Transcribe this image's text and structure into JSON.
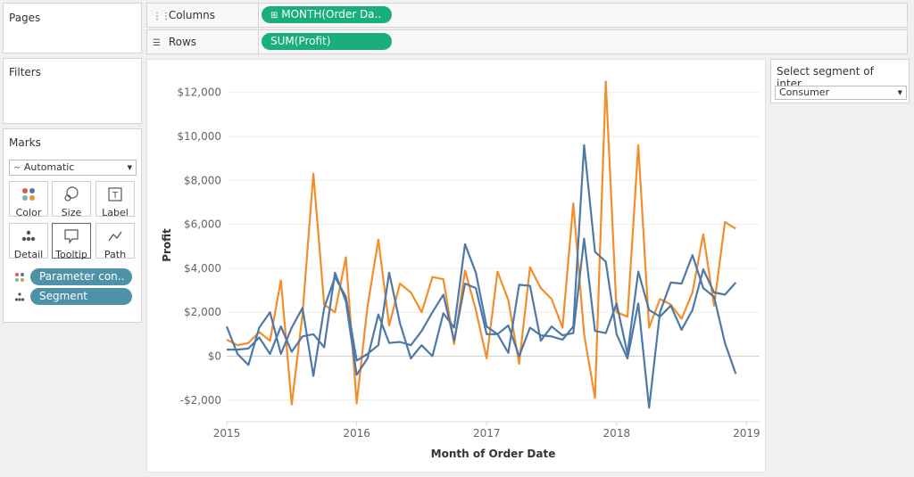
{
  "shelves": {
    "pages_title": "Pages",
    "columns_label": "Columns",
    "columns_pill": "MONTH(Order Da..",
    "rows_label": "Rows",
    "rows_pill": "SUM(Profit)"
  },
  "filters": {
    "title": "Filters"
  },
  "marks": {
    "title": "Marks",
    "mark_type": "Automatic",
    "buttons": [
      {
        "label": "Color",
        "icon": "color-dots-icon"
      },
      {
        "label": "Size",
        "icon": "size-icon"
      },
      {
        "label": "Label",
        "icon": "label-icon"
      },
      {
        "label": "Detail",
        "icon": "detail-dots-icon"
      },
      {
        "label": "Tooltip",
        "icon": "tooltip-icon"
      },
      {
        "label": "Path",
        "icon": "path-icon"
      }
    ],
    "fields": [
      {
        "label": "Parameter con..",
        "icon": "color-dots-icon"
      },
      {
        "label": "Segment",
        "icon": "detail-dots-icon"
      }
    ]
  },
  "parameter": {
    "title": "Select segment of inter...",
    "value": "Consumer"
  },
  "colors": {
    "orange": "#f28e2b",
    "blue": "#4e79a7",
    "pill_green": "#1aae7e",
    "pill_blue": "#4e91a8"
  },
  "chart_data": {
    "type": "line",
    "xlabel": "Month of Order Date",
    "ylabel": "Profit",
    "ylim": [
      -2900,
      13000
    ],
    "yticks": [
      -2000,
      0,
      2000,
      4000,
      6000,
      8000,
      10000,
      12000
    ],
    "ytick_labels": [
      "-$2,000",
      "$0",
      "$2,000",
      "$4,000",
      "$6,000",
      "$8,000",
      "$10,000",
      "$12,000"
    ],
    "xlim": [
      2015,
      2019.1
    ],
    "xticks": [
      2015,
      2016,
      2017,
      2018,
      2019
    ],
    "xtick_labels": [
      "2015",
      "2016",
      "2017",
      "2018",
      "2019"
    ],
    "grid": "horizontal",
    "series": [
      {
        "color": "orange",
        "values": [
          750,
          500,
          600,
          1100,
          700,
          3450,
          -2200,
          1900,
          8300,
          2350,
          2000,
          4500,
          -2150,
          2250,
          5300,
          1400,
          3300,
          2900,
          2000,
          3600,
          3500,
          550,
          3900,
          2100,
          -100,
          3850,
          2550,
          -350,
          4050,
          3100,
          2600,
          1300,
          6950,
          1000,
          -1900,
          12500,
          2000,
          1800,
          9600,
          1300,
          2600,
          2350,
          1700,
          2900,
          5550,
          2300,
          6100,
          5800
        ]
      },
      {
        "color": "blue",
        "values": [
          1350,
          100,
          -400,
          1300,
          2000,
          100,
          1300,
          2200,
          -900,
          2200,
          3600,
          2700,
          -200,
          100,
          500,
          3800,
          1500,
          -100,
          500,
          0,
          1950,
          1300,
          5100,
          3800,
          1350,
          1000,
          1400,
          0,
          1300,
          950,
          900,
          750,
          1350,
          9600,
          4750,
          4300,
          1000,
          -100,
          2400,
          -2350,
          2000,
          3350,
          3300,
          4600,
          3100,
          2700,
          600,
          -800
        ]
      },
      {
        "color": "blue",
        "values": [
          300,
          300,
          350,
          850,
          100,
          1350,
          200,
          900,
          1000,
          400,
          3800,
          2500,
          -850,
          -100,
          1900,
          600,
          650,
          500,
          1150,
          2000,
          2800,
          700,
          3300,
          3100,
          1000,
          1000,
          150,
          3250,
          3200,
          700,
          1350,
          950,
          1050,
          5350,
          1150,
          1050,
          2400,
          100,
          3850,
          2100,
          1800,
          2300,
          1200,
          2100,
          3950,
          2900,
          2800,
          3350
        ]
      }
    ]
  }
}
